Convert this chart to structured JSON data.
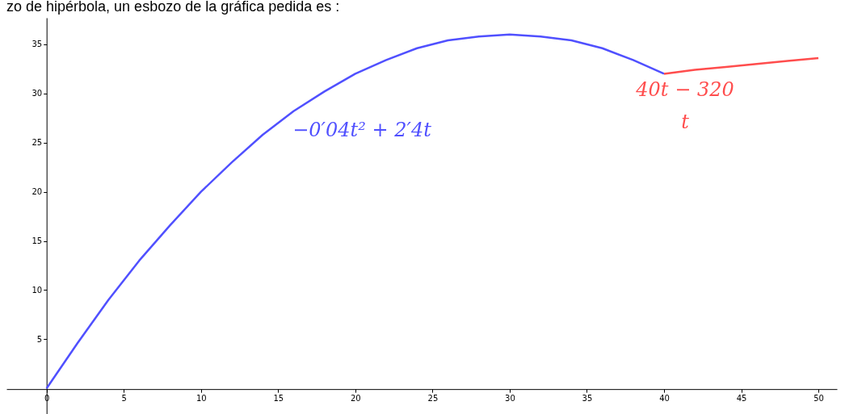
{
  "chart_data": {
    "type": "line",
    "title": "zo de hipérbola, un esbozo de la gráfica pedida es :",
    "xlim": [
      -2.6,
      51.2
    ],
    "ylim": [
      -2.6,
      37.7
    ],
    "xticks": [
      0,
      5,
      10,
      15,
      20,
      25,
      30,
      35,
      40,
      45,
      50
    ],
    "yticks": [
      5,
      10,
      15,
      20,
      25,
      30,
      35
    ],
    "grid": false,
    "marker": "none",
    "line_style": "solid",
    "series": [
      {
        "color": "#5050ff",
        "x": [
          0,
          2,
          4,
          6,
          8,
          10,
          12,
          14,
          16,
          18,
          20,
          22,
          24,
          26,
          28,
          30,
          32,
          34,
          36,
          38,
          40
        ],
        "values": [
          0,
          4.6,
          9,
          13,
          16.6,
          20,
          23,
          25.8,
          28.2,
          30.2,
          32,
          33.4,
          34.6,
          35.4,
          35.8,
          36,
          35.8,
          35.4,
          34.6,
          33.4,
          32
        ]
      },
      {
        "color": "#ff4d4d",
        "x": [
          40,
          42,
          44,
          46,
          48,
          50
        ],
        "values": [
          32,
          32.4,
          32.7,
          33,
          33.3,
          33.6
        ]
      }
    ],
    "annotations": [
      "−0′04t² + 2′4t",
      "40t − 320",
      "t"
    ]
  }
}
